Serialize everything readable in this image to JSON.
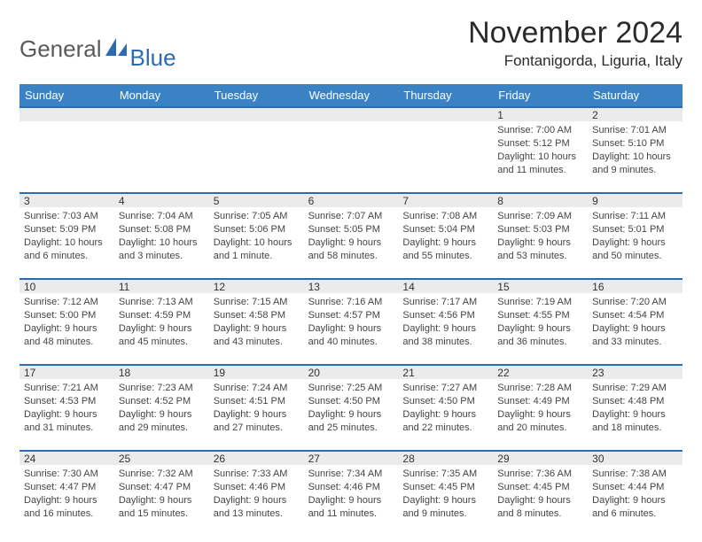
{
  "logo": {
    "part1": "General",
    "part2": "Blue"
  },
  "title": "November 2024",
  "location": "Fontanigorda, Liguria, Italy",
  "colors": {
    "header_bg": "#3b82c4",
    "header_text": "#ffffff",
    "rule": "#2c6cae",
    "greybar": "#ebebeb",
    "body_text": "#444444",
    "logo_grey": "#5a5a5a",
    "logo_blue": "#2d6bb0"
  },
  "daynames": [
    "Sunday",
    "Monday",
    "Tuesday",
    "Wednesday",
    "Thursday",
    "Friday",
    "Saturday"
  ],
  "weeks": [
    {
      "nums": [
        "",
        "",
        "",
        "",
        "",
        "1",
        "2"
      ],
      "cells": [
        {
          "sunrise": "",
          "sunset": "",
          "dl1": "",
          "dl2": ""
        },
        {
          "sunrise": "",
          "sunset": "",
          "dl1": "",
          "dl2": ""
        },
        {
          "sunrise": "",
          "sunset": "",
          "dl1": "",
          "dl2": ""
        },
        {
          "sunrise": "",
          "sunset": "",
          "dl1": "",
          "dl2": ""
        },
        {
          "sunrise": "",
          "sunset": "",
          "dl1": "",
          "dl2": ""
        },
        {
          "sunrise": "Sunrise: 7:00 AM",
          "sunset": "Sunset: 5:12 PM",
          "dl1": "Daylight: 10 hours",
          "dl2": "and 11 minutes."
        },
        {
          "sunrise": "Sunrise: 7:01 AM",
          "sunset": "Sunset: 5:10 PM",
          "dl1": "Daylight: 10 hours",
          "dl2": "and 9 minutes."
        }
      ]
    },
    {
      "nums": [
        "3",
        "4",
        "5",
        "6",
        "7",
        "8",
        "9"
      ],
      "cells": [
        {
          "sunrise": "Sunrise: 7:03 AM",
          "sunset": "Sunset: 5:09 PM",
          "dl1": "Daylight: 10 hours",
          "dl2": "and 6 minutes."
        },
        {
          "sunrise": "Sunrise: 7:04 AM",
          "sunset": "Sunset: 5:08 PM",
          "dl1": "Daylight: 10 hours",
          "dl2": "and 3 minutes."
        },
        {
          "sunrise": "Sunrise: 7:05 AM",
          "sunset": "Sunset: 5:06 PM",
          "dl1": "Daylight: 10 hours",
          "dl2": "and 1 minute."
        },
        {
          "sunrise": "Sunrise: 7:07 AM",
          "sunset": "Sunset: 5:05 PM",
          "dl1": "Daylight: 9 hours",
          "dl2": "and 58 minutes."
        },
        {
          "sunrise": "Sunrise: 7:08 AM",
          "sunset": "Sunset: 5:04 PM",
          "dl1": "Daylight: 9 hours",
          "dl2": "and 55 minutes."
        },
        {
          "sunrise": "Sunrise: 7:09 AM",
          "sunset": "Sunset: 5:03 PM",
          "dl1": "Daylight: 9 hours",
          "dl2": "and 53 minutes."
        },
        {
          "sunrise": "Sunrise: 7:11 AM",
          "sunset": "Sunset: 5:01 PM",
          "dl1": "Daylight: 9 hours",
          "dl2": "and 50 minutes."
        }
      ]
    },
    {
      "nums": [
        "10",
        "11",
        "12",
        "13",
        "14",
        "15",
        "16"
      ],
      "cells": [
        {
          "sunrise": "Sunrise: 7:12 AM",
          "sunset": "Sunset: 5:00 PM",
          "dl1": "Daylight: 9 hours",
          "dl2": "and 48 minutes."
        },
        {
          "sunrise": "Sunrise: 7:13 AM",
          "sunset": "Sunset: 4:59 PM",
          "dl1": "Daylight: 9 hours",
          "dl2": "and 45 minutes."
        },
        {
          "sunrise": "Sunrise: 7:15 AM",
          "sunset": "Sunset: 4:58 PM",
          "dl1": "Daylight: 9 hours",
          "dl2": "and 43 minutes."
        },
        {
          "sunrise": "Sunrise: 7:16 AM",
          "sunset": "Sunset: 4:57 PM",
          "dl1": "Daylight: 9 hours",
          "dl2": "and 40 minutes."
        },
        {
          "sunrise": "Sunrise: 7:17 AM",
          "sunset": "Sunset: 4:56 PM",
          "dl1": "Daylight: 9 hours",
          "dl2": "and 38 minutes."
        },
        {
          "sunrise": "Sunrise: 7:19 AM",
          "sunset": "Sunset: 4:55 PM",
          "dl1": "Daylight: 9 hours",
          "dl2": "and 36 minutes."
        },
        {
          "sunrise": "Sunrise: 7:20 AM",
          "sunset": "Sunset: 4:54 PM",
          "dl1": "Daylight: 9 hours",
          "dl2": "and 33 minutes."
        }
      ]
    },
    {
      "nums": [
        "17",
        "18",
        "19",
        "20",
        "21",
        "22",
        "23"
      ],
      "cells": [
        {
          "sunrise": "Sunrise: 7:21 AM",
          "sunset": "Sunset: 4:53 PM",
          "dl1": "Daylight: 9 hours",
          "dl2": "and 31 minutes."
        },
        {
          "sunrise": "Sunrise: 7:23 AM",
          "sunset": "Sunset: 4:52 PM",
          "dl1": "Daylight: 9 hours",
          "dl2": "and 29 minutes."
        },
        {
          "sunrise": "Sunrise: 7:24 AM",
          "sunset": "Sunset: 4:51 PM",
          "dl1": "Daylight: 9 hours",
          "dl2": "and 27 minutes."
        },
        {
          "sunrise": "Sunrise: 7:25 AM",
          "sunset": "Sunset: 4:50 PM",
          "dl1": "Daylight: 9 hours",
          "dl2": "and 25 minutes."
        },
        {
          "sunrise": "Sunrise: 7:27 AM",
          "sunset": "Sunset: 4:50 PM",
          "dl1": "Daylight: 9 hours",
          "dl2": "and 22 minutes."
        },
        {
          "sunrise": "Sunrise: 7:28 AM",
          "sunset": "Sunset: 4:49 PM",
          "dl1": "Daylight: 9 hours",
          "dl2": "and 20 minutes."
        },
        {
          "sunrise": "Sunrise: 7:29 AM",
          "sunset": "Sunset: 4:48 PM",
          "dl1": "Daylight: 9 hours",
          "dl2": "and 18 minutes."
        }
      ]
    },
    {
      "nums": [
        "24",
        "25",
        "26",
        "27",
        "28",
        "29",
        "30"
      ],
      "cells": [
        {
          "sunrise": "Sunrise: 7:30 AM",
          "sunset": "Sunset: 4:47 PM",
          "dl1": "Daylight: 9 hours",
          "dl2": "and 16 minutes."
        },
        {
          "sunrise": "Sunrise: 7:32 AM",
          "sunset": "Sunset: 4:47 PM",
          "dl1": "Daylight: 9 hours",
          "dl2": "and 15 minutes."
        },
        {
          "sunrise": "Sunrise: 7:33 AM",
          "sunset": "Sunset: 4:46 PM",
          "dl1": "Daylight: 9 hours",
          "dl2": "and 13 minutes."
        },
        {
          "sunrise": "Sunrise: 7:34 AM",
          "sunset": "Sunset: 4:46 PM",
          "dl1": "Daylight: 9 hours",
          "dl2": "and 11 minutes."
        },
        {
          "sunrise": "Sunrise: 7:35 AM",
          "sunset": "Sunset: 4:45 PM",
          "dl1": "Daylight: 9 hours",
          "dl2": "and 9 minutes."
        },
        {
          "sunrise": "Sunrise: 7:36 AM",
          "sunset": "Sunset: 4:45 PM",
          "dl1": "Daylight: 9 hours",
          "dl2": "and 8 minutes."
        },
        {
          "sunrise": "Sunrise: 7:38 AM",
          "sunset": "Sunset: 4:44 PM",
          "dl1": "Daylight: 9 hours",
          "dl2": "and 6 minutes."
        }
      ]
    }
  ]
}
